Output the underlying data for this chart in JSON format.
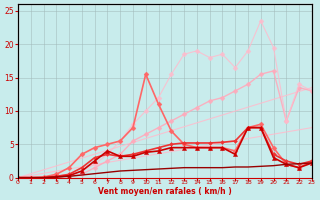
{
  "background_color": "#c8ecec",
  "grid_color": "#a0b8b8",
  "xlabel": "Vent moyen/en rafales ( km/h )",
  "xlim": [
    0,
    23
  ],
  "ylim": [
    0,
    26
  ],
  "yticks": [
    0,
    5,
    10,
    15,
    20,
    25
  ],
  "xticks": [
    0,
    1,
    2,
    3,
    4,
    5,
    6,
    7,
    8,
    9,
    10,
    11,
    12,
    13,
    14,
    15,
    16,
    17,
    18,
    19,
    20,
    21,
    22,
    23
  ],
  "lines": [
    {
      "x": [
        0,
        23
      ],
      "y": [
        0,
        13.5
      ],
      "color": "#ffbbcc",
      "lw": 0.8,
      "marker": null,
      "alpha": 0.85
    },
    {
      "x": [
        0,
        23
      ],
      "y": [
        0,
        7.5
      ],
      "color": "#ffbbcc",
      "lw": 0.8,
      "marker": null,
      "alpha": 0.85
    },
    {
      "x": [
        0,
        1,
        2,
        3,
        4,
        5,
        6,
        7,
        8,
        9,
        10,
        11,
        12,
        13,
        14,
        15,
        16,
        17,
        18,
        19,
        20,
        21,
        22,
        23
      ],
      "y": [
        0,
        0,
        0,
        0.1,
        0.2,
        0.5,
        1.5,
        2.5,
        3.5,
        5.5,
        6.5,
        7.5,
        8.5,
        9.5,
        10.5,
        11.5,
        12.0,
        13.0,
        14.0,
        15.5,
        16.0,
        8.5,
        13.5,
        13.0
      ],
      "color": "#ffaabb",
      "lw": 1.0,
      "marker": "D",
      "markersize": 2.5,
      "alpha": 0.9
    },
    {
      "x": [
        0,
        1,
        2,
        3,
        4,
        5,
        6,
        7,
        8,
        9,
        10,
        11,
        12,
        13,
        14,
        15,
        16,
        17,
        18,
        19,
        20,
        21,
        22,
        23
      ],
      "y": [
        0,
        0,
        0,
        0.2,
        0.5,
        1.0,
        2.0,
        3.5,
        5.5,
        8.0,
        10.0,
        12.0,
        15.5,
        18.5,
        19.0,
        18.0,
        18.5,
        16.5,
        19.0,
        23.5,
        19.5,
        8.5,
        14.0,
        13.0
      ],
      "color": "#ffbbcc",
      "lw": 0.8,
      "marker": "D",
      "markersize": 2.5,
      "alpha": 0.85
    },
    {
      "x": [
        0,
        1,
        2,
        3,
        4,
        5,
        6,
        7,
        8,
        9,
        10,
        11,
        12,
        13,
        14,
        15,
        16,
        17,
        18,
        19,
        20,
        21,
        22,
        23
      ],
      "y": [
        0,
        0,
        0.1,
        0.5,
        1.5,
        3.5,
        4.5,
        5.0,
        5.5,
        7.5,
        15.5,
        11.0,
        7.0,
        5.0,
        4.5,
        4.5,
        4.5,
        4.0,
        7.5,
        8.0,
        4.5,
        2.0,
        1.5,
        2.5
      ],
      "color": "#ff6666",
      "lw": 1.2,
      "marker": "D",
      "markersize": 2.5,
      "alpha": 1.0
    },
    {
      "x": [
        0,
        1,
        2,
        3,
        4,
        5,
        6,
        7,
        8,
        9,
        10,
        11,
        12,
        13,
        14,
        15,
        16,
        17,
        18,
        19,
        20,
        21,
        22,
        23
      ],
      "y": [
        0,
        0,
        0,
        0.2,
        0.5,
        1.5,
        3.0,
        3.5,
        3.2,
        3.5,
        4.0,
        4.5,
        5.0,
        5.2,
        5.2,
        5.2,
        5.3,
        5.5,
        7.5,
        7.5,
        3.5,
        2.5,
        2.0,
        2.5
      ],
      "color": "#ee3333",
      "lw": 1.2,
      "marker": "D",
      "markersize": 2,
      "alpha": 1.0
    },
    {
      "x": [
        0,
        1,
        2,
        3,
        4,
        5,
        6,
        7,
        8,
        9,
        10,
        11,
        12,
        13,
        14,
        15,
        16,
        17,
        18,
        19,
        20,
        21,
        22,
        23
      ],
      "y": [
        0,
        0,
        0,
        0.1,
        0.3,
        1.0,
        2.5,
        4.0,
        3.2,
        3.2,
        3.8,
        4.0,
        4.5,
        4.5,
        4.5,
        4.5,
        4.5,
        3.5,
        7.5,
        7.5,
        3.0,
        2.0,
        1.5,
        2.2
      ],
      "color": "#cc0000",
      "lw": 1.2,
      "marker": "^",
      "markersize": 3,
      "alpha": 1.0
    },
    {
      "x": [
        0,
        1,
        2,
        3,
        4,
        5,
        6,
        7,
        8,
        9,
        10,
        11,
        12,
        13,
        14,
        15,
        16,
        17,
        18,
        19,
        20,
        21,
        22,
        23
      ],
      "y": [
        0,
        0,
        0,
        0.1,
        0.2,
        0.4,
        0.6,
        0.8,
        1.0,
        1.1,
        1.2,
        1.3,
        1.4,
        1.5,
        1.5,
        1.5,
        1.5,
        1.6,
        1.6,
        1.7,
        1.8,
        2.0,
        2.1,
        2.2
      ],
      "color": "#990000",
      "lw": 1.0,
      "marker": null,
      "alpha": 1.0
    }
  ]
}
